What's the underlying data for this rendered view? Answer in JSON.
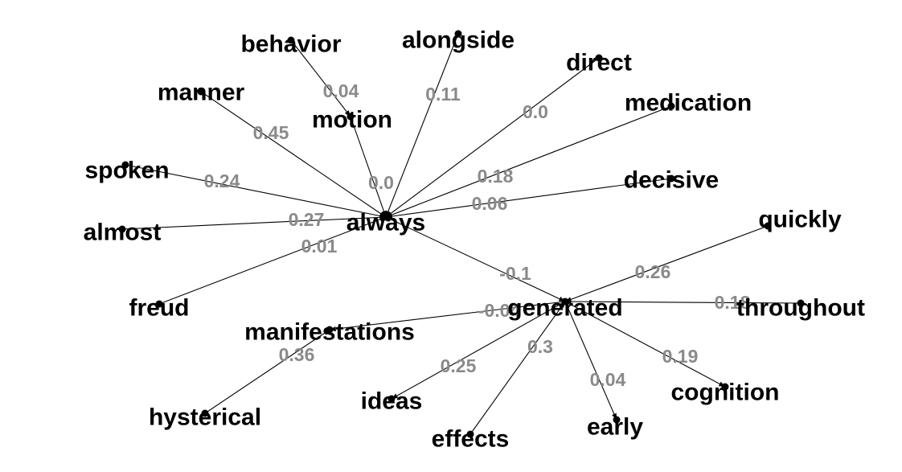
{
  "colors": {
    "node_text": "#000000",
    "edge_text": "#8a8a8a",
    "edge_line": "#000000",
    "background": "#ffffff"
  },
  "nodes": [
    {
      "id": "always",
      "label": "always"
    },
    {
      "id": "generated",
      "label": "generated"
    },
    {
      "id": "behavior",
      "label": "behavior"
    },
    {
      "id": "alongside",
      "label": "alongside"
    },
    {
      "id": "direct",
      "label": "direct"
    },
    {
      "id": "manner",
      "label": "manner"
    },
    {
      "id": "motion",
      "label": "motion"
    },
    {
      "id": "medication",
      "label": "medication"
    },
    {
      "id": "spoken",
      "label": "spoken"
    },
    {
      "id": "decisive",
      "label": "decisive"
    },
    {
      "id": "almost",
      "label": "almost"
    },
    {
      "id": "quickly",
      "label": "quickly"
    },
    {
      "id": "freud",
      "label": "freud"
    },
    {
      "id": "throughout",
      "label": "throughout"
    },
    {
      "id": "manifestations",
      "label": "manifestations"
    },
    {
      "id": "hysterical",
      "label": "hysterical"
    },
    {
      "id": "ideas",
      "label": "ideas"
    },
    {
      "id": "effects",
      "label": "effects"
    },
    {
      "id": "early",
      "label": "early"
    },
    {
      "id": "cognition",
      "label": "cognition"
    }
  ],
  "edges": [
    {
      "source": "behavior",
      "target": "motion",
      "weight": "0.04"
    },
    {
      "source": "manner",
      "target": "always",
      "weight": "0.45"
    },
    {
      "source": "alongside",
      "target": "always",
      "weight": "0.11"
    },
    {
      "source": "direct",
      "target": "always",
      "weight": "0.0"
    },
    {
      "source": "motion",
      "target": "always",
      "weight": "0.0"
    },
    {
      "source": "medication",
      "target": "always",
      "weight": "0.18"
    },
    {
      "source": "spoken",
      "target": "always",
      "weight": "0.24"
    },
    {
      "source": "decisive",
      "target": "always",
      "weight": "0.06"
    },
    {
      "source": "almost",
      "target": "always",
      "weight": "0.27"
    },
    {
      "source": "freud",
      "target": "always",
      "weight": "0.01"
    },
    {
      "source": "always",
      "target": "generated",
      "weight": "-0.1"
    },
    {
      "source": "quickly",
      "target": "generated",
      "weight": "0.26"
    },
    {
      "source": "throughout",
      "target": "generated",
      "weight": "0.18"
    },
    {
      "source": "generated",
      "target": "manifestations",
      "weight": "-0.04"
    },
    {
      "source": "hysterical",
      "target": "manifestations",
      "weight": "0.36"
    },
    {
      "source": "generated",
      "target": "ideas",
      "weight": "0.25"
    },
    {
      "source": "effects",
      "target": "generated",
      "weight": "0.3"
    },
    {
      "source": "generated",
      "target": "early",
      "weight": "0.04"
    },
    {
      "source": "generated",
      "target": "cognition",
      "weight": "0.19"
    }
  ]
}
